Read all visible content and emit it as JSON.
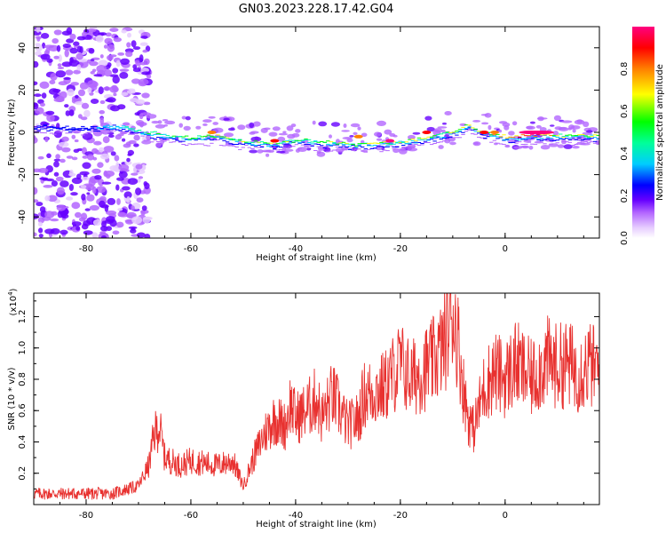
{
  "title": "GN03.2023.228.17.42.G04",
  "chart_data": [
    {
      "type": "heatmap",
      "xlabel": "Height of straight line (km)",
      "ylabel": "Frequency (Hz)",
      "xlim": [
        -90,
        18
      ],
      "ylim": [
        -50,
        50
      ],
      "xticks": [
        -80,
        -60,
        -40,
        -20,
        0
      ],
      "yticks": [
        -40,
        -20,
        0,
        20,
        40
      ],
      "colorbar": {
        "label": "Normalized spectral amplitude",
        "range": [
          0.0,
          1.0
        ],
        "ticks": [
          "0.0",
          "0.2",
          "0.4",
          "0.6",
          "0.8"
        ],
        "tick_values": [
          0.0,
          0.2,
          0.4,
          0.6,
          0.8
        ],
        "colors": [
          "#ffffff",
          "#d9b3ff",
          "#8a2be2",
          "#3300ff",
          "#00ffff",
          "#00ff00",
          "#ffff00",
          "#ff8000",
          "#ff0000",
          "#ff0080"
        ]
      },
      "ridge_km": [
        -90,
        -80,
        -75,
        -70,
        -65,
        -60,
        -55,
        -50,
        -45,
        -40,
        -35,
        -30,
        -25,
        -20,
        -15,
        -10,
        -7,
        -5,
        0,
        5,
        10,
        18
      ],
      "ridge_freq": [
        4,
        3,
        4,
        2,
        0,
        -1,
        0,
        -3,
        -4,
        -2,
        -3,
        -4,
        -4,
        -3,
        -1,
        2,
        5,
        2,
        -1,
        0,
        0,
        0
      ],
      "ridge_amp": [
        0.2,
        0.22,
        0.3,
        0.4,
        0.45,
        0.5,
        0.55,
        0.5,
        0.55,
        0.5,
        0.5,
        0.55,
        0.6,
        0.55,
        0.6,
        0.55,
        0.65,
        0.6,
        0.7,
        0.9,
        0.6,
        0.55
      ]
    },
    {
      "type": "line",
      "xlabel": "Height of straight line (km)",
      "ylabel": "SNR (10 * v/v)",
      "y_multiplier": "(x10",
      "y_multiplier_exp": "4",
      "y_multiplier_close": ")",
      "xlim": [
        -90,
        18
      ],
      "ylim": [
        0,
        1.35
      ],
      "xticks": [
        -80,
        -60,
        -40,
        -20,
        0
      ],
      "yticks": [
        "0.2",
        "0.4",
        "0.6",
        "0.8",
        "1.0",
        "1.2"
      ],
      "ytick_values": [
        0.2,
        0.4,
        0.6,
        0.8,
        1.0,
        1.2
      ],
      "color": "#e8312f",
      "x": [
        -90,
        -80,
        -75,
        -70,
        -68,
        -67,
        -66,
        -65,
        -62,
        -60,
        -55,
        -52,
        -50,
        -48,
        -46,
        -44,
        -42,
        -41,
        -40,
        -38,
        -36,
        -35,
        -33,
        -30,
        -28,
        -27,
        -25,
        -23,
        -20,
        -18,
        -16,
        -14,
        -12,
        -11,
        -10,
        -9,
        -8,
        -7,
        -6,
        -4,
        -2,
        0,
        2,
        5,
        8,
        10,
        12,
        14,
        16,
        18
      ],
      "y": [
        0.07,
        0.07,
        0.07,
        0.12,
        0.25,
        0.45,
        0.5,
        0.3,
        0.25,
        0.28,
        0.25,
        0.28,
        0.12,
        0.3,
        0.45,
        0.55,
        0.5,
        0.65,
        0.55,
        0.6,
        0.68,
        0.55,
        0.7,
        0.5,
        0.55,
        0.7,
        0.72,
        0.75,
        0.9,
        0.8,
        0.85,
        0.9,
        1.0,
        1.1,
        1.25,
        1.05,
        0.75,
        0.55,
        0.48,
        0.75,
        0.85,
        0.8,
        0.9,
        0.8,
        0.92,
        0.88,
        0.9,
        0.85,
        0.9,
        0.85
      ]
    }
  ]
}
